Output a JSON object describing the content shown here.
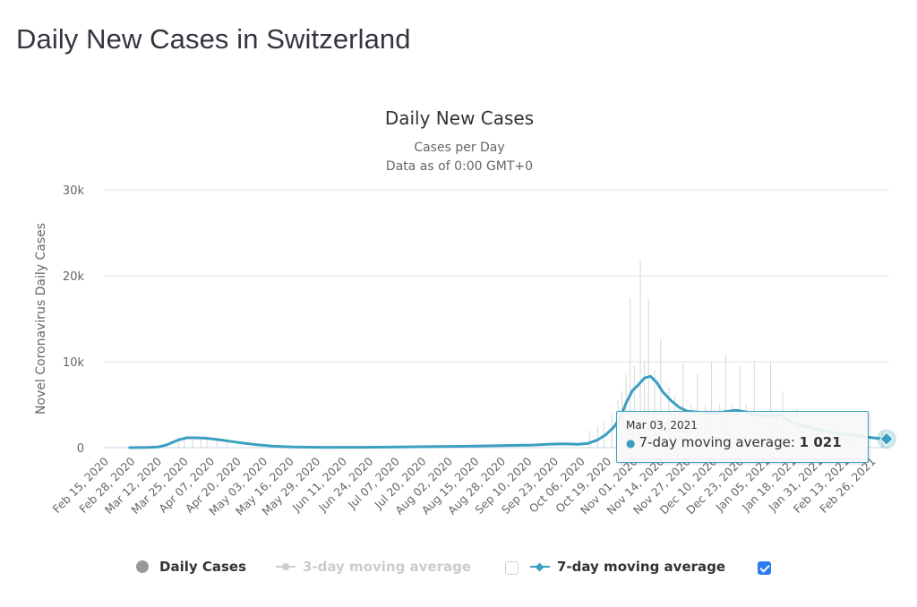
{
  "page": {
    "title": "Daily New Cases in Switzerland"
  },
  "colors": {
    "accent": "#3b9fc1",
    "daily_bars": "#cccccc",
    "grid": "#e6e6e6",
    "disabled": "#cccccc",
    "checkbox_on": "#2e7bf2"
  },
  "chart_data": {
    "type": "line",
    "title": "Daily New Cases",
    "subtitle_lines": [
      "Cases per Day",
      "Data as of 0:00 GMT+0"
    ],
    "xlabel": "",
    "ylabel": "Novel Coronavirus Daily Cases",
    "ylim": [
      0,
      30000
    ],
    "y_ticks": [
      0,
      10000,
      20000,
      30000
    ],
    "y_tick_labels": [
      "0",
      "10k",
      "20k",
      "30k"
    ],
    "x_range": [
      "2020-02-15",
      "2021-03-03"
    ],
    "x_tick_labels": [
      "Feb 15, 2020",
      "Feb 28, 2020",
      "Mar 12, 2020",
      "Mar 25, 2020",
      "Apr 07, 2020",
      "Apr 20, 2020",
      "May 03, 2020",
      "May 16, 2020",
      "May 29, 2020",
      "Jun 11, 2020",
      "Jun 24, 2020",
      "Jul 07, 2020",
      "Jul 20, 2020",
      "Aug 02, 2020",
      "Aug 15, 2020",
      "Aug 28, 2020",
      "Sep 10, 2020",
      "Sep 23, 2020",
      "Oct 06, 2020",
      "Oct 19, 2020",
      "Nov 01, 2020",
      "Nov 14, 2020",
      "Nov 27, 2020",
      "Dec 10, 2020",
      "Dec 23, 2020",
      "Jan 05, 2021",
      "Jan 18, 2021",
      "Jan 31, 2021",
      "Feb 13, 2021",
      "Feb 26, 2021"
    ],
    "x_tick_interval_days": 13,
    "grid": true,
    "legend_position": "bottom",
    "series": [
      {
        "name": "Daily Cases",
        "type": "column",
        "visible": true,
        "points": [
          [
            "2020-03-20",
            1200
          ],
          [
            "2020-03-23",
            1000
          ],
          [
            "2020-03-27",
            1300
          ],
          [
            "2020-03-31",
            1100
          ],
          [
            "2020-04-03",
            1000
          ],
          [
            "2020-04-08",
            900
          ],
          [
            "2020-04-13",
            700
          ],
          [
            "2020-10-08",
            2000
          ],
          [
            "2020-10-12",
            2500
          ],
          [
            "2020-10-15",
            3000
          ],
          [
            "2020-10-19",
            4000
          ],
          [
            "2020-10-22",
            5500
          ],
          [
            "2020-10-24",
            6600
          ],
          [
            "2020-10-26",
            8500
          ],
          [
            "2020-10-28",
            17400
          ],
          [
            "2020-10-30",
            9500
          ],
          [
            "2020-11-02",
            21900
          ],
          [
            "2020-11-04",
            10000
          ],
          [
            "2020-11-06",
            17300
          ],
          [
            "2020-11-09",
            9000
          ],
          [
            "2020-11-12",
            12700
          ],
          [
            "2020-11-16",
            7000
          ],
          [
            "2020-11-19",
            6000
          ],
          [
            "2020-11-23",
            9800
          ],
          [
            "2020-11-27",
            5000
          ],
          [
            "2020-11-30",
            8500
          ],
          [
            "2020-12-04",
            5000
          ],
          [
            "2020-12-07",
            9900
          ],
          [
            "2020-12-11",
            5000
          ],
          [
            "2020-12-14",
            10800
          ],
          [
            "2020-12-17",
            5000
          ],
          [
            "2020-12-21",
            9600
          ],
          [
            "2020-12-24",
            5000
          ],
          [
            "2020-12-28",
            10100
          ],
          [
            "2021-01-01",
            4000
          ],
          [
            "2021-01-05",
            9900
          ],
          [
            "2021-01-08",
            4000
          ],
          [
            "2021-01-11",
            6500
          ],
          [
            "2021-01-15",
            3000
          ],
          [
            "2021-01-18",
            4500
          ],
          [
            "2021-01-25",
            3000
          ],
          [
            "2021-02-01",
            2500
          ],
          [
            "2021-02-08",
            2000
          ],
          [
            "2021-02-15",
            1800
          ],
          [
            "2021-02-22",
            1500
          ],
          [
            "2021-03-01",
            1800
          ]
        ]
      },
      {
        "name": "3-day moving average",
        "type": "line",
        "visible": false
      },
      {
        "name": "7-day moving average",
        "type": "line",
        "visible": true,
        "points": [
          [
            "2020-02-25",
            0
          ],
          [
            "2020-03-05",
            30
          ],
          [
            "2020-03-10",
            80
          ],
          [
            "2020-03-14",
            300
          ],
          [
            "2020-03-17",
            600
          ],
          [
            "2020-03-20",
            900
          ],
          [
            "2020-03-24",
            1150
          ],
          [
            "2020-03-28",
            1150
          ],
          [
            "2020-04-02",
            1100
          ],
          [
            "2020-04-08",
            950
          ],
          [
            "2020-04-14",
            750
          ],
          [
            "2020-04-20",
            550
          ],
          [
            "2020-04-27",
            350
          ],
          [
            "2020-05-05",
            180
          ],
          [
            "2020-05-15",
            80
          ],
          [
            "2020-06-01",
            30
          ],
          [
            "2020-06-20",
            40
          ],
          [
            "2020-07-07",
            80
          ],
          [
            "2020-07-25",
            120
          ],
          [
            "2020-08-10",
            170
          ],
          [
            "2020-08-25",
            230
          ],
          [
            "2020-09-10",
            300
          ],
          [
            "2020-09-20",
            420
          ],
          [
            "2020-09-26",
            450
          ],
          [
            "2020-10-02",
            400
          ],
          [
            "2020-10-07",
            480
          ],
          [
            "2020-10-12",
            900
          ],
          [
            "2020-10-16",
            1500
          ],
          [
            "2020-10-20",
            2400
          ],
          [
            "2020-10-23",
            3400
          ],
          [
            "2020-10-26",
            5200
          ],
          [
            "2020-10-29",
            6600
          ],
          [
            "2020-11-01",
            7300
          ],
          [
            "2020-11-04",
            8100
          ],
          [
            "2020-11-07",
            8300
          ],
          [
            "2020-11-10",
            7600
          ],
          [
            "2020-11-13",
            6500
          ],
          [
            "2020-11-17",
            5500
          ],
          [
            "2020-11-21",
            4700
          ],
          [
            "2020-11-25",
            4250
          ],
          [
            "2020-12-01",
            4100
          ],
          [
            "2020-12-08",
            4000
          ],
          [
            "2020-12-14",
            4200
          ],
          [
            "2020-12-19",
            4350
          ],
          [
            "2020-12-24",
            4150
          ],
          [
            "2020-12-28",
            3800
          ],
          [
            "2021-01-04",
            3700
          ],
          [
            "2021-01-10",
            3800
          ],
          [
            "2021-01-15",
            3000
          ],
          [
            "2021-01-22",
            2500
          ],
          [
            "2021-01-30",
            2000
          ],
          [
            "2021-02-08",
            1600
          ],
          [
            "2021-02-18",
            1300
          ],
          [
            "2021-02-26",
            1100
          ],
          [
            "2021-03-03",
            1021
          ]
        ]
      }
    ],
    "tooltip": {
      "date": "Mar 03, 2021",
      "series": "7-day moving average",
      "label": "7-day moving average: ",
      "value": "1 021"
    }
  },
  "legend": {
    "items": [
      {
        "label": "Daily Cases",
        "enabled": true
      },
      {
        "label": "3-day moving average",
        "enabled": false,
        "checked": false
      },
      {
        "label": "7-day moving average",
        "enabled": true,
        "checked": true
      }
    ]
  }
}
